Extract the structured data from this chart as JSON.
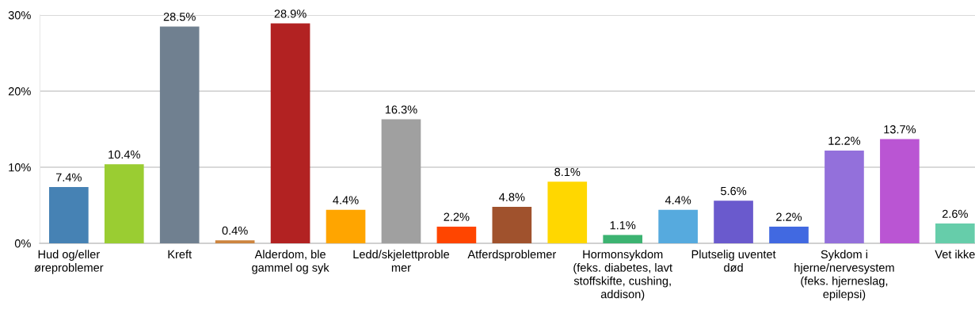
{
  "chart_data": {
    "type": "bar",
    "categories": [
      "Hud og/eller\nøreproblemer",
      null,
      "Kreft",
      null,
      "Alderdom, ble\ngammel og syk",
      null,
      "Ledd/skjelettproble\nmer",
      null,
      "Atferdsproblemer",
      null,
      "Hormonsykdom\n(feks. diabetes, lavt\nstoffskifte, cushing,\naddison)",
      null,
      "Plutselig uventet\ndød",
      null,
      "Sykdom i\nhjerne/nervesystem\n(feks. hjerneslag,\nepilepsi)",
      null,
      "Vet ikke"
    ],
    "values": [
      7.4,
      10.4,
      28.5,
      0.4,
      28.9,
      4.4,
      16.3,
      2.2,
      4.8,
      8.1,
      1.1,
      4.4,
      5.6,
      2.2,
      12.2,
      13.7,
      2.6
    ],
    "colors": [
      "#4682b4",
      "#9acd32",
      "#708090",
      "#cd853f",
      "#b22222",
      "#ffa500",
      "#a0a0a0",
      "#ff4500",
      "#a0522d",
      "#ffd700",
      "#3cb371",
      "#56aade",
      "#6a5acd",
      "#4169e1",
      "#9370db",
      "#ba55d3",
      "#66cdaa"
    ],
    "value_labels": [
      "7.4%",
      "10.4%",
      "28.5%",
      "0.4%",
      "28.9%",
      "4.4%",
      "16.3%",
      "2.2%",
      "4.8%",
      "8.1%",
      "1.1%",
      "4.4%",
      "5.6%",
      "2.2%",
      "12.2%",
      "13.7%",
      "2.6%"
    ],
    "ylim": [
      0,
      30
    ],
    "yticks": [
      {
        "value": 0,
        "label": "0%"
      },
      {
        "value": 10,
        "label": "10%"
      },
      {
        "value": 20,
        "label": "20%"
      },
      {
        "value": 30,
        "label": "30%"
      }
    ],
    "grid": "y"
  }
}
